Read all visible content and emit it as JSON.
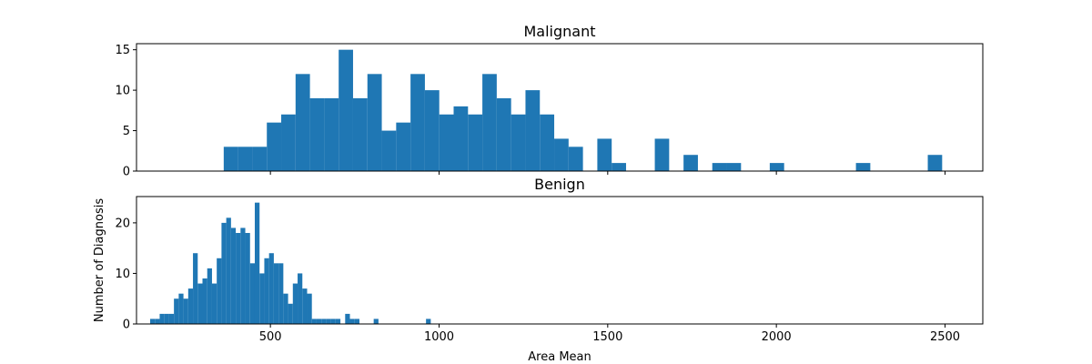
{
  "chart_data": [
    {
      "type": "bar",
      "title": "Malignant",
      "xlabel": "",
      "ylabel": "",
      "xlim": [
        103,
        2612
      ],
      "ylim": [
        0,
        15.75
      ],
      "xticks": [
        500,
        1000,
        1500,
        2000,
        2500
      ],
      "yticks": [
        0,
        5,
        10,
        15
      ],
      "show_xtick_labels": false,
      "bin_width": 42.6,
      "bar_color": "#1f77b4",
      "bins": [
        {
          "x": 361.6,
          "y": 3
        },
        {
          "x": 404.2,
          "y": 3
        },
        {
          "x": 446.8,
          "y": 3
        },
        {
          "x": 489.4,
          "y": 6
        },
        {
          "x": 532.0,
          "y": 7
        },
        {
          "x": 574.6,
          "y": 12
        },
        {
          "x": 617.2,
          "y": 9
        },
        {
          "x": 659.8,
          "y": 9
        },
        {
          "x": 702.4,
          "y": 15
        },
        {
          "x": 745.0,
          "y": 9
        },
        {
          "x": 787.6,
          "y": 12
        },
        {
          "x": 830.2,
          "y": 5
        },
        {
          "x": 872.8,
          "y": 6
        },
        {
          "x": 915.4,
          "y": 12
        },
        {
          "x": 958.0,
          "y": 10
        },
        {
          "x": 1000.6,
          "y": 7
        },
        {
          "x": 1043.2,
          "y": 8
        },
        {
          "x": 1085.8,
          "y": 7
        },
        {
          "x": 1128.4,
          "y": 12
        },
        {
          "x": 1171.0,
          "y": 9
        },
        {
          "x": 1213.6,
          "y": 7
        },
        {
          "x": 1256.2,
          "y": 10
        },
        {
          "x": 1298.8,
          "y": 7
        },
        {
          "x": 1341.4,
          "y": 4
        },
        {
          "x": 1384.0,
          "y": 3
        },
        {
          "x": 1469.2,
          "y": 4
        },
        {
          "x": 1511.8,
          "y": 1
        },
        {
          "x": 1639.6,
          "y": 4
        },
        {
          "x": 1724.8,
          "y": 2
        },
        {
          "x": 1810.0,
          "y": 1
        },
        {
          "x": 1852.6,
          "y": 1
        },
        {
          "x": 1980.4,
          "y": 1
        },
        {
          "x": 2235.9,
          "y": 1
        },
        {
          "x": 2448.9,
          "y": 2
        }
      ]
    },
    {
      "type": "bar",
      "title": "Benign",
      "xlabel": "Area Mean",
      "ylabel": "Number of Diagnosis",
      "xlim": [
        103,
        2612
      ],
      "ylim": [
        0,
        25.2
      ],
      "xticks": [
        500,
        1000,
        1500,
        2000,
        2500
      ],
      "yticks": [
        0,
        10,
        20
      ],
      "show_xtick_labels": true,
      "bin_width": 14.1,
      "bar_color": "#1f77b4",
      "bins": [
        {
          "x": 143.5,
          "y": 1
        },
        {
          "x": 157.6,
          "y": 1
        },
        {
          "x": 171.7,
          "y": 2
        },
        {
          "x": 185.8,
          "y": 2
        },
        {
          "x": 199.9,
          "y": 2
        },
        {
          "x": 214.0,
          "y": 5
        },
        {
          "x": 228.1,
          "y": 6
        },
        {
          "x": 242.2,
          "y": 5
        },
        {
          "x": 256.3,
          "y": 7
        },
        {
          "x": 270.4,
          "y": 14
        },
        {
          "x": 284.5,
          "y": 8
        },
        {
          "x": 298.6,
          "y": 9
        },
        {
          "x": 312.7,
          "y": 11
        },
        {
          "x": 326.8,
          "y": 8
        },
        {
          "x": 340.9,
          "y": 13
        },
        {
          "x": 355.0,
          "y": 20
        },
        {
          "x": 369.1,
          "y": 21
        },
        {
          "x": 383.2,
          "y": 19
        },
        {
          "x": 397.3,
          "y": 18
        },
        {
          "x": 411.4,
          "y": 19
        },
        {
          "x": 425.5,
          "y": 18
        },
        {
          "x": 439.6,
          "y": 12
        },
        {
          "x": 453.7,
          "y": 24
        },
        {
          "x": 467.8,
          "y": 10
        },
        {
          "x": 481.9,
          "y": 13
        },
        {
          "x": 496.0,
          "y": 14
        },
        {
          "x": 510.1,
          "y": 12
        },
        {
          "x": 524.2,
          "y": 12
        },
        {
          "x": 538.3,
          "y": 6
        },
        {
          "x": 552.4,
          "y": 4
        },
        {
          "x": 566.5,
          "y": 8
        },
        {
          "x": 580.6,
          "y": 10
        },
        {
          "x": 594.7,
          "y": 7
        },
        {
          "x": 608.8,
          "y": 6
        },
        {
          "x": 622.9,
          "y": 1
        },
        {
          "x": 637.0,
          "y": 1
        },
        {
          "x": 651.1,
          "y": 1
        },
        {
          "x": 665.2,
          "y": 1
        },
        {
          "x": 679.3,
          "y": 1
        },
        {
          "x": 693.4,
          "y": 1
        },
        {
          "x": 721.6,
          "y": 2
        },
        {
          "x": 735.7,
          "y": 1
        },
        {
          "x": 749.8,
          "y": 1
        },
        {
          "x": 806.2,
          "y": 1
        },
        {
          "x": 961.3,
          "y": 1
        }
      ]
    }
  ]
}
